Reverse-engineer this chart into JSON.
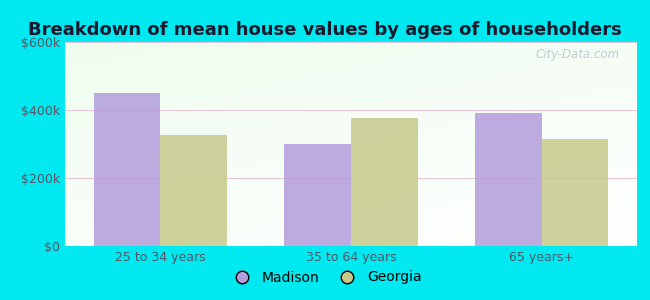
{
  "title": "Breakdown of mean house values by ages of householders",
  "categories": [
    "25 to 34 years",
    "35 to 64 years",
    "65 years+"
  ],
  "madison_values": [
    450000,
    300000,
    390000
  ],
  "georgia_values": [
    325000,
    375000,
    315000
  ],
  "madison_color": "#b39ddb",
  "georgia_color": "#c5c98a",
  "ylim": [
    0,
    600000
  ],
  "yticks": [
    0,
    200000,
    400000,
    600000
  ],
  "ytick_labels": [
    "$0",
    "$200k",
    "$400k",
    "$600k"
  ],
  "bar_width": 0.35,
  "legend_labels": [
    "Madison",
    "Georgia"
  ],
  "bg_outer": "#00e8f0",
  "title_fontsize": 13,
  "tick_fontsize": 9,
  "legend_fontsize": 10,
  "watermark": "City-Data.com"
}
